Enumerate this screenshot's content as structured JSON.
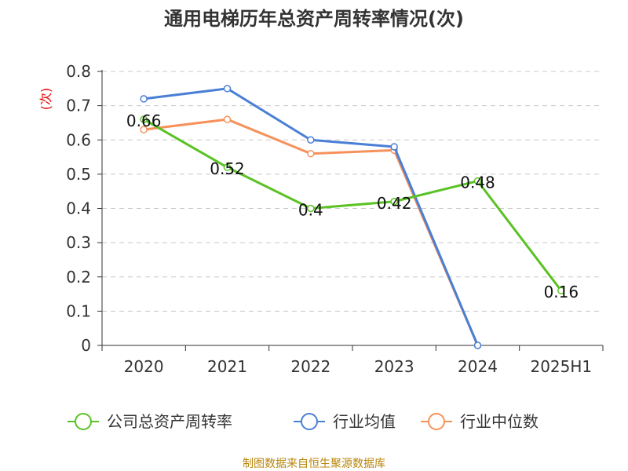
{
  "chart_data": {
    "type": "line",
    "title": "通用电梯历年总资产周转率情况(次)",
    "ylabel": "(次)",
    "xlabel": "",
    "categories": [
      "2020",
      "2021",
      "2022",
      "2023",
      "2024",
      "2025H1"
    ],
    "ylim": [
      0,
      0.8
    ],
    "yticks": [
      "0",
      "0.1",
      "0.2",
      "0.3",
      "0.4",
      "0.5",
      "0.6",
      "0.7",
      "0.8"
    ],
    "grid": true,
    "legend_position": "bottom",
    "series": [
      {
        "name": "公司总资产周转率",
        "color": "#5bc225",
        "values": [
          0.66,
          0.52,
          0.4,
          0.42,
          0.48,
          0.16
        ],
        "labels": [
          "0.66",
          "0.52",
          "0.4",
          "0.42",
          "0.48",
          "0.16"
        ]
      },
      {
        "name": "行业均值",
        "color": "#4a7fd6",
        "values": [
          0.72,
          0.75,
          0.6,
          0.58,
          0,
          null
        ],
        "labels": []
      },
      {
        "name": "行业中位数",
        "color": "#f7915b",
        "values": [
          0.63,
          0.66,
          0.56,
          0.57,
          0,
          null
        ],
        "labels": []
      }
    ],
    "source": "制图数据来自恒生聚源数据库"
  }
}
